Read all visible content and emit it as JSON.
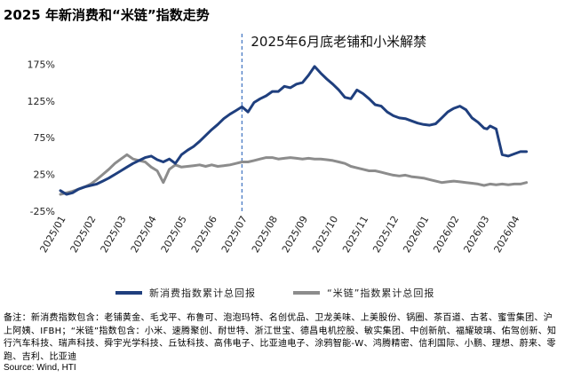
{
  "title": "2025 年新消费和“米链”指数走势",
  "note": "备注：新消费指数包含：老铺黄金、毛戈平、布鲁可、泡泡玛特、名创优品、卫龙美味、上美股份、锅圈、茶百道、古茗、蜜雪集团、沪上阿姨、IFBH；“米链”指数包含：小米、速腾聚创、耐世特、浙江世宝、德昌电机控股、敏实集团、中创新航、福耀玻璃、佑驾创新、知行汽车科技、瑞声科技、舜宇光学科技、丘钛科技、高伟电子、比亚迪电子、涂鸦智能-W、鸿腾精密、信利国际、小鹏、理想、蔚来、零跑、吉利、比亚迪",
  "source": "Source: Wind, HTI",
  "colors": {
    "new_consumption": "#1F3F7E",
    "xiaomi_chain": "#8C8C8C",
    "annotation_line": "#4A7BC4"
  },
  "chart_data": {
    "type": "line",
    "title": "",
    "xlabel": "",
    "ylabel": "",
    "ylim": [
      -25,
      190
    ],
    "yticks": [
      "-25%",
      "25%",
      "75%",
      "125%",
      "175%"
    ],
    "ytick_values": [
      -25,
      25,
      75,
      125,
      175
    ],
    "x_tick_labels": [
      "2025/01",
      "2025/02",
      "2025/03",
      "2025/04",
      "2025/05",
      "2025/06",
      "2025/07",
      "2025/08",
      "2025/09",
      "2025/10",
      "2025/11",
      "2025/12",
      "2026/01",
      "2026/02",
      "2026/03",
      "2026/04"
    ],
    "grid": false,
    "legend_position": "bottom",
    "annotation": {
      "text": "2025年6月底老铺和小米解禁",
      "x": 6.0
    },
    "series": [
      {
        "name": "新消费指数累计总回报",
        "x": [
          0,
          0.2,
          0.4,
          0.6,
          0.8,
          1.0,
          1.2,
          1.4,
          1.6,
          1.8,
          2.0,
          2.2,
          2.4,
          2.6,
          2.8,
          3.0,
          3.2,
          3.4,
          3.6,
          3.8,
          4.0,
          4.2,
          4.4,
          4.6,
          4.8,
          5.0,
          5.2,
          5.4,
          5.6,
          5.8,
          6.0,
          6.2,
          6.4,
          6.6,
          6.8,
          7.0,
          7.2,
          7.4,
          7.6,
          7.8,
          8.0,
          8.2,
          8.4,
          8.6,
          8.8,
          9.0,
          9.2,
          9.4,
          9.6,
          9.8,
          10.0,
          10.2,
          10.4,
          10.6,
          10.8,
          11.0,
          11.2,
          11.4,
          11.6,
          11.8,
          12.0,
          12.2,
          12.4,
          12.6,
          12.8,
          13.0,
          13.2,
          13.4,
          13.6,
          13.8,
          14.0,
          14.1,
          14.2,
          14.4,
          14.6,
          14.8,
          15.0,
          15.2,
          15.4
        ],
        "values": [
          3,
          -2,
          0,
          5,
          8,
          10,
          12,
          16,
          20,
          25,
          30,
          35,
          40,
          44,
          48,
          50,
          45,
          42,
          46,
          40,
          52,
          58,
          63,
          70,
          78,
          86,
          93,
          101,
          107,
          112,
          117,
          110,
          123,
          128,
          132,
          138,
          138,
          145,
          143,
          148,
          150,
          160,
          172,
          163,
          155,
          148,
          140,
          130,
          128,
          140,
          135,
          128,
          120,
          118,
          110,
          105,
          102,
          101,
          98,
          95,
          93,
          92,
          94,
          102,
          110,
          115,
          118,
          113,
          102,
          96,
          88,
          87,
          91,
          87,
          52,
          50,
          53,
          56,
          56
        ]
      },
      {
        "name": "“米链”指数累计总回报",
        "x": [
          0,
          0.2,
          0.4,
          0.6,
          0.8,
          1.0,
          1.2,
          1.4,
          1.6,
          1.8,
          2.0,
          2.2,
          2.4,
          2.6,
          2.8,
          3.0,
          3.2,
          3.4,
          3.6,
          3.8,
          4.0,
          4.2,
          4.4,
          4.6,
          4.8,
          5.0,
          5.2,
          5.4,
          5.6,
          5.8,
          6.0,
          6.2,
          6.4,
          6.6,
          6.8,
          7.0,
          7.2,
          7.4,
          7.6,
          7.8,
          8.0,
          8.2,
          8.4,
          8.6,
          8.8,
          9.0,
          9.2,
          9.4,
          9.6,
          9.8,
          10.0,
          10.2,
          10.4,
          10.6,
          10.8,
          11.0,
          11.2,
          11.4,
          11.6,
          11.8,
          12.0,
          12.2,
          12.4,
          12.6,
          12.8,
          13.0,
          13.2,
          13.4,
          13.6,
          13.8,
          14.0,
          14.2,
          14.4,
          14.6,
          14.8,
          15.0,
          15.2,
          15.4
        ],
        "values": [
          -2,
          0,
          2,
          5,
          8,
          12,
          18,
          25,
          32,
          40,
          46,
          52,
          46,
          44,
          42,
          35,
          30,
          14,
          32,
          38,
          35,
          36,
          37,
          38,
          36,
          38,
          36,
          37,
          38,
          40,
          42,
          42,
          44,
          46,
          48,
          48,
          46,
          47,
          48,
          47,
          46,
          47,
          46,
          46,
          45,
          44,
          42,
          40,
          36,
          34,
          32,
          30,
          30,
          28,
          26,
          24,
          23,
          24,
          22,
          21,
          20,
          18,
          16,
          14,
          15,
          16,
          15,
          14,
          13,
          12,
          10,
          12,
          11,
          12,
          11,
          12,
          12,
          14
        ]
      }
    ]
  }
}
